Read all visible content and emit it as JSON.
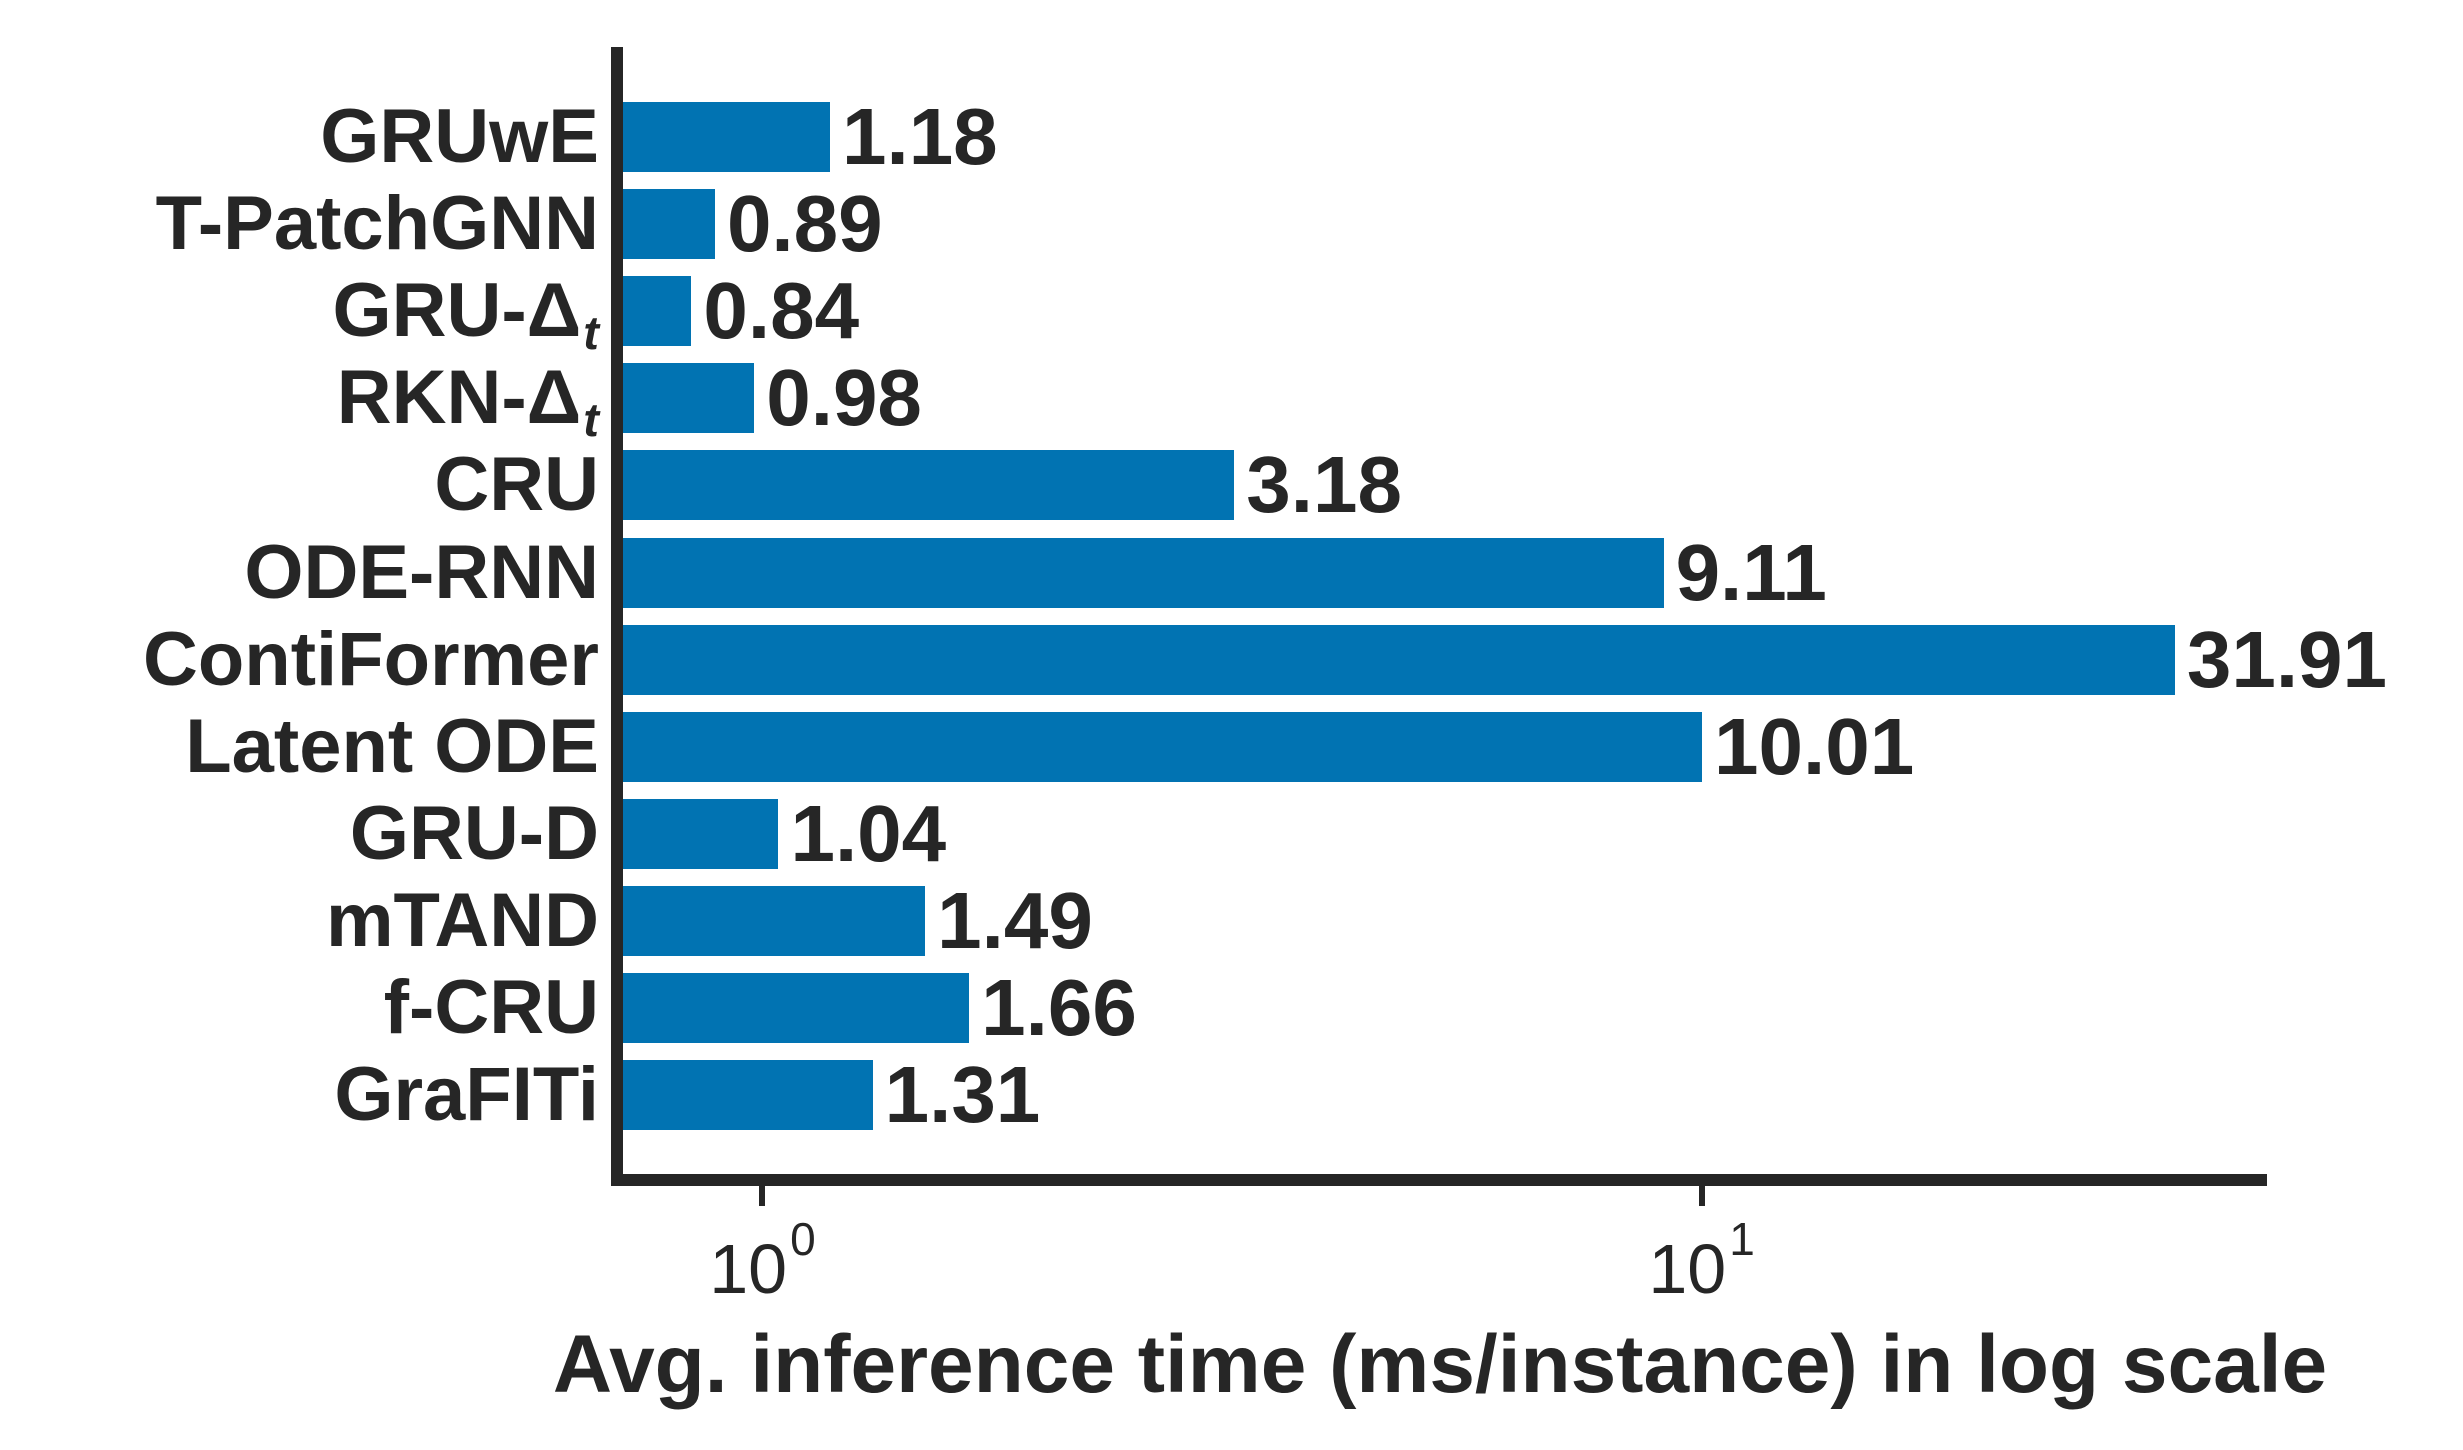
{
  "chart_data": {
    "type": "bar",
    "orientation": "horizontal",
    "xscale": "log",
    "xlabel": "Avg. inference time (ms/instance) in log scale",
    "categories": [
      {
        "text": "GRUwE"
      },
      {
        "text": "T-PatchGNN"
      },
      {
        "text": "GRU-Δ",
        "sub": "t"
      },
      {
        "text": "RKN-Δ",
        "sub": "t"
      },
      {
        "text": "CRU"
      },
      {
        "text": "ODE-RNN"
      },
      {
        "text": "ContiFormer"
      },
      {
        "text": "Latent ODE"
      },
      {
        "text": "GRU-D"
      },
      {
        "text": "mTAND"
      },
      {
        "text": "f-CRU"
      },
      {
        "text": "GraFITi"
      }
    ],
    "values": [
      1.18,
      0.89,
      0.84,
      0.98,
      3.18,
      9.11,
      31.91,
      10.01,
      1.04,
      1.49,
      1.66,
      1.31
    ],
    "value_labels": [
      "1.18",
      "0.89",
      "0.84",
      "0.98",
      "3.18",
      "9.11",
      "31.91",
      "10.01",
      "1.04",
      "1.49",
      "1.66",
      "1.31"
    ],
    "xticks": [
      {
        "value": 1,
        "base": "10",
        "exp": "0"
      },
      {
        "value": 10,
        "base": "10",
        "exp": "1"
      }
    ],
    "xlim": [
      0.7,
      40
    ],
    "bar_color": "#0173b2",
    "text_color": "#262626",
    "grid": false,
    "legend": false
  }
}
